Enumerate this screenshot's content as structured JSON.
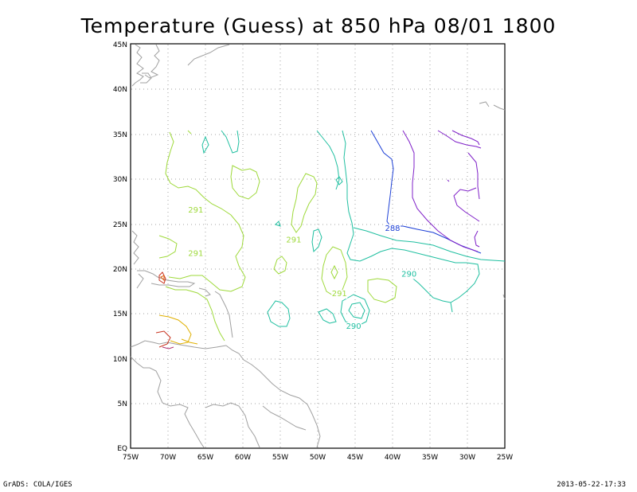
{
  "title": "Temperature (Guess) at 850 hPa 08/01 1800",
  "footer": {
    "left": "GrADS: COLA/IGES",
    "right": "2013-05-22-17:33"
  },
  "axes": {
    "lat_ticks": [
      "45N",
      "40N",
      "35N",
      "30N",
      "25N",
      "20N",
      "15N",
      "10N",
      "5N",
      "EQ"
    ],
    "lon_ticks": [
      "75W",
      "70W",
      "65W",
      "60W",
      "55W",
      "50W",
      "45W",
      "40W",
      "35W",
      "30W",
      "25W"
    ]
  },
  "colors": {
    "coast": "#a0a0a0",
    "grid": "#a0a0a0",
    "t291": "#9ed93a",
    "t290": "#1fbfa0",
    "t288": "#1c3fd6",
    "t287": "#7f20c8",
    "t293": "#e0b000",
    "t295": "#c8321e"
  },
  "contour_labels": [
    {
      "text": "291",
      "color": "#9ed93a",
      "lon": -66.3,
      "lat": 26.2
    },
    {
      "text": "291",
      "color": "#9ed93a",
      "lon": -66.3,
      "lat": 21.4
    },
    {
      "text": "291",
      "color": "#9ed93a",
      "lon": -53.2,
      "lat": 22.9
    },
    {
      "text": "291",
      "color": "#9ed93a",
      "lon": -47.1,
      "lat": 16.9
    },
    {
      "text": "290",
      "color": "#1fbfa0",
      "lon": -45.2,
      "lat": 13.3
    },
    {
      "text": "290",
      "color": "#1fbfa0",
      "lon": -37.8,
      "lat": 19.1
    },
    {
      "text": "288",
      "color": "#1c3fd6",
      "lon": -40.0,
      "lat": 24.2
    }
  ]
}
